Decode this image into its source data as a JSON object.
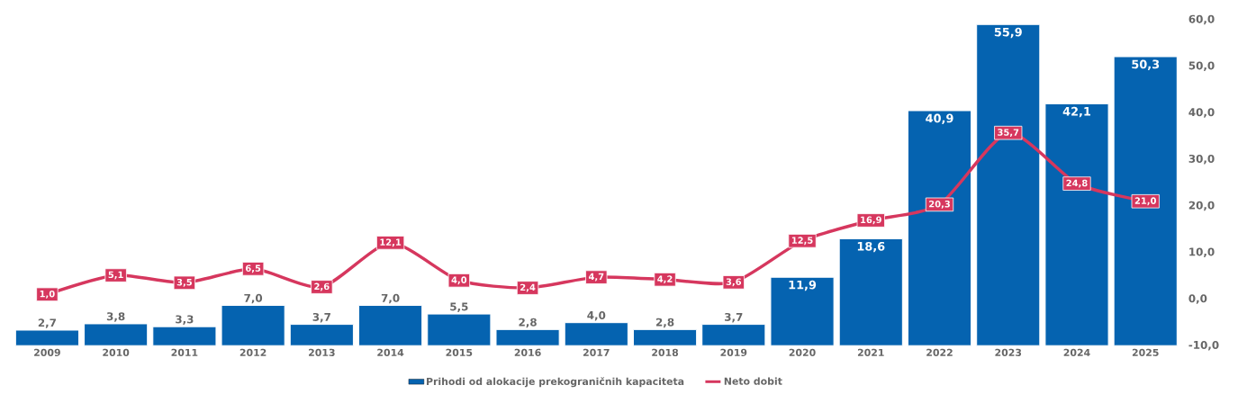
{
  "chart_data": {
    "type": "bar",
    "categories": [
      "2009",
      "2010",
      "2011",
      "2012",
      "2013",
      "2014",
      "2015",
      "2016",
      "2017",
      "2018",
      "2019",
      "2020",
      "2021",
      "2022",
      "2023",
      "2024",
      "2025"
    ],
    "series": [
      {
        "name": "Prihodi od alokacije prekograničnih kapaciteta",
        "axis": "y",
        "color": "#0563b0",
        "values": [
          2.7,
          3.8,
          3.3,
          7.0,
          3.7,
          7.0,
          5.5,
          2.8,
          4.0,
          2.8,
          3.7,
          11.9,
          18.6,
          40.9,
          55.9,
          42.1,
          50.3
        ],
        "value_labels": [
          "2,7",
          "3,8",
          "3,3",
          "7,0",
          "3,7",
          "7,0",
          "5,5",
          "2,8",
          "4,0",
          "2,8",
          "3,7",
          "11,9",
          "18,6",
          "40,9",
          "55,9",
          "42,1",
          "50,3"
        ]
      },
      {
        "name": "Neto dobit",
        "type": "line",
        "marker": "square",
        "axis": "y2",
        "color": "#d6375e",
        "values": [
          1.0,
          5.1,
          3.5,
          6.5,
          2.6,
          12.1,
          4.0,
          2.4,
          4.7,
          4.2,
          3.6,
          12.5,
          16.9,
          20.3,
          35.7,
          24.8,
          21.0
        ],
        "value_labels": [
          "1,0",
          "5,1",
          "3,5",
          "6,5",
          "2,6",
          "12,1",
          "4,0",
          "2,4",
          "4,7",
          "4,2",
          "3,6",
          "12,5",
          "16,9",
          "20,3",
          "35,7",
          "24,8",
          "21,0"
        ]
      }
    ],
    "y2lim": [
      -10,
      60
    ],
    "y2ticks": [
      {
        "value": -10,
        "label": "-10,0"
      },
      {
        "value": 0,
        "label": "0,0"
      },
      {
        "value": 10,
        "label": "10,0"
      },
      {
        "value": 20,
        "label": "20,0"
      },
      {
        "value": 30,
        "label": "30,0"
      },
      {
        "value": 40,
        "label": "40,0"
      },
      {
        "value": 50,
        "label": "50,0"
      },
      {
        "value": 60,
        "label": "60,0"
      }
    ],
    "tick_labels": "xy2",
    "legend": "bottom",
    "line_style": "solid"
  }
}
